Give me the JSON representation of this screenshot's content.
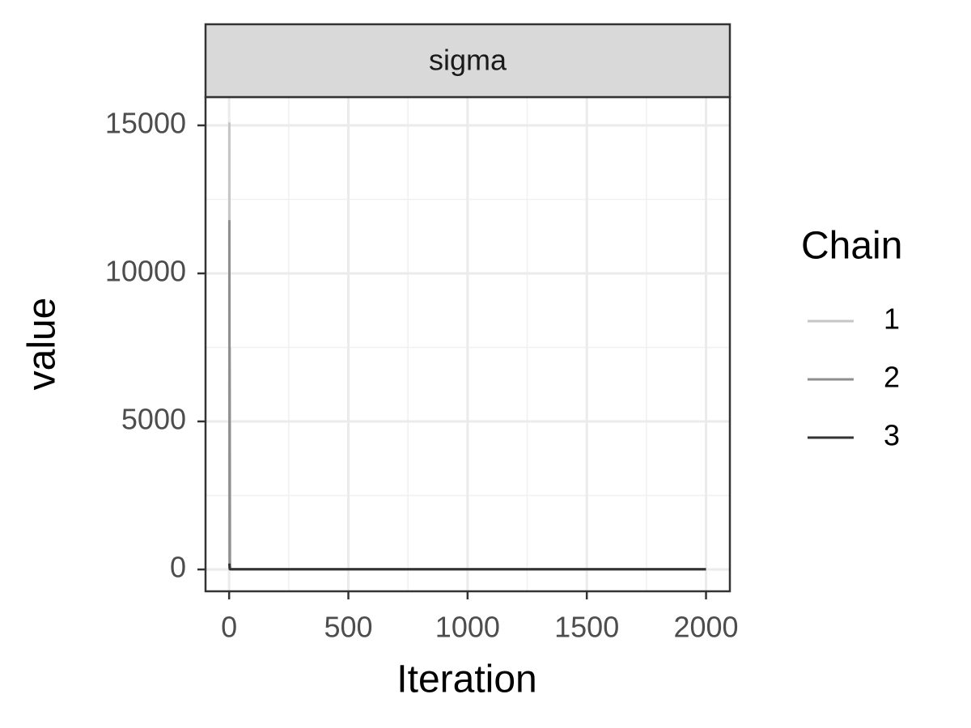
{
  "chart_data": {
    "type": "line",
    "facet": "sigma",
    "xlabel": "Iteration",
    "ylabel": "value",
    "legend_title": "Chain",
    "legend": "right",
    "x": [
      1,
      2,
      3,
      5,
      8,
      12,
      20,
      50,
      2000
    ],
    "series": [
      {
        "name": "1",
        "color": "#c6c6c6",
        "values": [
          15100,
          400,
          7500,
          100,
          10,
          5,
          5,
          5,
          5
        ]
      },
      {
        "name": "2",
        "color": "#8f8f8f",
        "values": [
          11800,
          300,
          20,
          8,
          5,
          5,
          5,
          5,
          5
        ]
      },
      {
        "name": "3",
        "color": "#333333",
        "values": [
          200,
          50,
          10,
          5,
          5,
          5,
          5,
          5,
          5
        ]
      }
    ],
    "xlim": [
      -99,
      2100
    ],
    "xticks": [
      0,
      500,
      1000,
      1500,
      2000
    ],
    "ylim": [
      -738,
      15956
    ],
    "yticks": [
      0,
      5000,
      10000,
      15000
    ],
    "x_minor_grid": [
      250,
      750,
      1250,
      1750
    ],
    "y_minor_grid": [
      2500,
      7500,
      12500
    ],
    "grid": true
  }
}
